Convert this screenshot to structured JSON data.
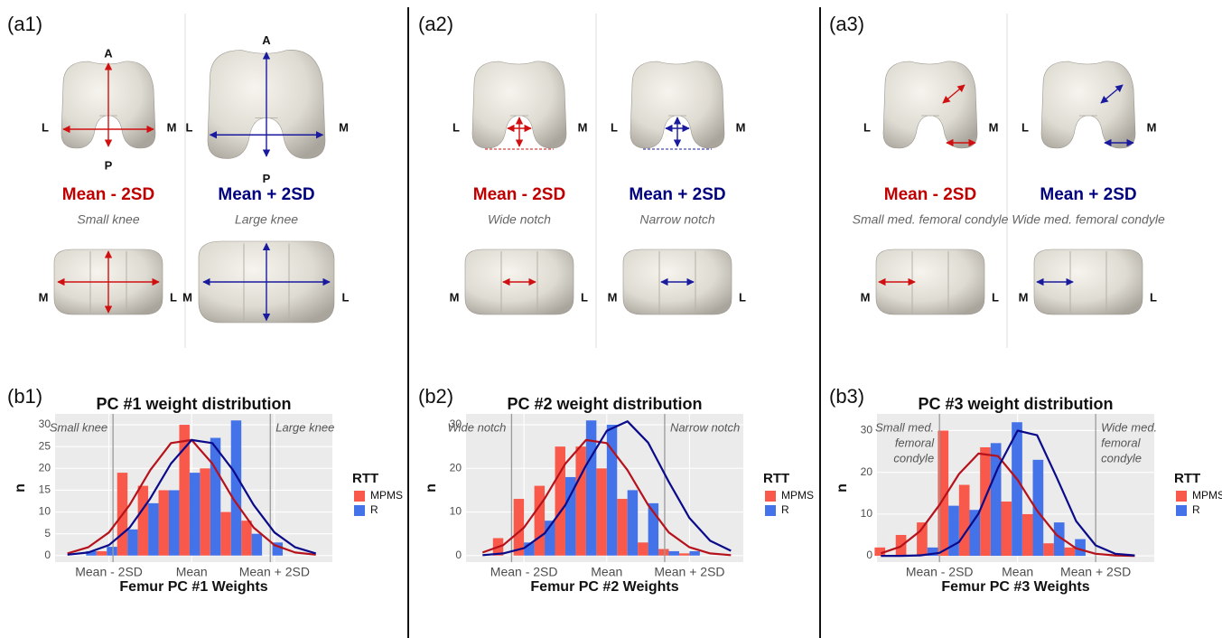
{
  "panels": [
    {
      "label": "(a1)",
      "chart_label": "(b1)",
      "views": [
        {
          "label": "Mean - 2SD",
          "caption": "Small knee",
          "top": {
            "left": "L",
            "right": "M",
            "up": "A",
            "down": "P"
          },
          "bottom": {
            "left": "M",
            "right": "L"
          }
        },
        {
          "label": "Mean + 2SD",
          "caption": "Large knee",
          "top": {
            "left": "L",
            "right": "M",
            "up": "A",
            "down": "P"
          },
          "bottom": {
            "left": "M",
            "right": "L"
          }
        }
      ]
    },
    {
      "label": "(a2)",
      "chart_label": "(b2)",
      "views": [
        {
          "label": "Mean - 2SD",
          "caption": "Wide notch",
          "top": {
            "left": "L",
            "right": "M"
          },
          "bottom": {
            "left": "M",
            "right": "L"
          }
        },
        {
          "label": "Mean + 2SD",
          "caption": "Narrow notch",
          "top": {
            "left": "L",
            "right": "M"
          },
          "bottom": {
            "left": "M",
            "right": "L"
          }
        }
      ]
    },
    {
      "label": "(a3)",
      "chart_label": "(b3)",
      "views": [
        {
          "label": "Mean - 2SD",
          "caption": "Small med. femoral condyle",
          "top": {
            "left": "L",
            "right": "M"
          },
          "bottom": {
            "left": "M",
            "right": "L"
          }
        },
        {
          "label": "Mean + 2SD",
          "caption": "Wide med. femoral condyle",
          "top": {
            "left": "L",
            "right": "M"
          },
          "bottom": {
            "left": "M",
            "right": "L"
          }
        }
      ]
    }
  ],
  "chart_data": [
    {
      "type": "histogram",
      "title": "PC #1 weight distribution",
      "x_label": "Femur PC #1 Weights",
      "y_label": "n",
      "legend_title": "RTT",
      "bins": [
        -2.8,
        -2.3,
        -1.8,
        -1.3,
        -0.8,
        -0.3,
        0.2,
        0.7,
        1.2,
        1.7,
        2.2
      ],
      "series": [
        {
          "name": "MPMS",
          "color": "#f8594a",
          "values": [
            0,
            1,
            19,
            16,
            15,
            30,
            20,
            10,
            8,
            0
          ]
        },
        {
          "name": "R",
          "color": "#4472e8",
          "values": [
            1,
            2,
            6,
            12,
            15,
            19,
            27,
            31,
            5,
            3
          ]
        }
      ],
      "curves": [
        {
          "color": "#b5121b",
          "x": [
            -3,
            -2.5,
            -2,
            -1.5,
            -1,
            -0.5,
            0,
            0.5,
            1,
            1.5,
            2,
            2.5,
            3
          ],
          "values": [
            0.5,
            1.9,
            5.3,
            11.6,
            19.6,
            25.8,
            26.5,
            21.1,
            13.1,
            6.4,
            2.4,
            0.7,
            0.2
          ]
        },
        {
          "color": "#0a0a8a",
          "x": [
            -3,
            -2.5,
            -2,
            -1.5,
            -1,
            -0.5,
            0,
            0.5,
            1,
            1.5,
            2,
            2.5,
            3
          ],
          "values": [
            0.2,
            0.7,
            2.4,
            6.4,
            13.1,
            21.1,
            26.5,
            25.8,
            19.6,
            11.6,
            5.3,
            1.9,
            0.5
          ]
        }
      ],
      "reference_lines": [
        {
          "value": -1.9,
          "lines": [
            "Small knee"
          ]
        },
        {
          "value": 1.9,
          "lines": [
            "Large knee"
          ]
        }
      ],
      "xlim": [
        -3.3,
        3.4
      ],
      "ylim": [
        -1.5,
        32.5
      ],
      "xticks": [
        {
          "value": -2,
          "label": "Mean - 2SD"
        },
        {
          "value": 0,
          "label": "Mean"
        },
        {
          "value": 2,
          "label": "Mean + 2SD"
        }
      ],
      "yticks": [
        0,
        5,
        10,
        15,
        20,
        25,
        30
      ],
      "grid": true
    },
    {
      "type": "histogram",
      "title": "PC #2 weight distribution",
      "x_label": "Femur PC #2 Weights",
      "y_label": "n",
      "legend_title": "RTT",
      "bins": [
        -2.75,
        -2.25,
        -1.75,
        -1.25,
        -0.75,
        -0.25,
        0.25,
        0.75,
        1.25,
        1.75,
        2.25,
        2.75
      ],
      "series": [
        {
          "name": "MPMS",
          "color": "#f8594a",
          "values": [
            4,
            13,
            16,
            25,
            25,
            20,
            13,
            3,
            1.5,
            0.5,
            0
          ]
        },
        {
          "name": "R",
          "color": "#4472e8",
          "values": [
            0,
            3,
            8,
            18,
            31,
            30,
            15,
            12,
            1,
            1,
            0
          ]
        }
      ],
      "curves": [
        {
          "color": "#b5121b",
          "x": [
            -3,
            -2.5,
            -2,
            -1.5,
            -1,
            -0.5,
            0,
            0.5,
            1,
            1.5,
            2,
            2.5,
            3
          ],
          "values": [
            0.7,
            2.4,
            6.4,
            13.1,
            21.1,
            26.5,
            25.8,
            19.6,
            11.6,
            5.3,
            1.9,
            0.5,
            0.1
          ]
        },
        {
          "color": "#0a0a8a",
          "x": [
            -3,
            -2.5,
            -2,
            -1.5,
            -1,
            -0.5,
            0,
            0.5,
            1,
            1.5,
            2,
            2.5,
            3
          ],
          "values": [
            0.1,
            0.5,
            1.7,
            5.1,
            11.6,
            20.7,
            28.6,
            30.8,
            25.9,
            16.9,
            8.6,
            3.4,
            1.1
          ]
        }
      ],
      "reference_lines": [
        {
          "value": -2.3,
          "lines": [
            "Wide notch"
          ]
        },
        {
          "value": 1.4,
          "lines": [
            "Narrow notch"
          ]
        }
      ],
      "xlim": [
        -3.4,
        3.3
      ],
      "ylim": [
        -1.5,
        32.5
      ],
      "xticks": [
        {
          "value": -2,
          "label": "Mean - 2SD"
        },
        {
          "value": 0,
          "label": "Mean"
        },
        {
          "value": 2,
          "label": "Mean + 2SD"
        }
      ],
      "yticks": [
        0,
        10,
        20,
        30
      ],
      "grid": true
    },
    {
      "type": "histogram",
      "title": "PC #3 weight distribution",
      "x_label": "Femur PC #3 Weights",
      "y_label": "n",
      "legend_title": "RTT",
      "bins": [
        -3.66,
        -3.12,
        -2.58,
        -2.04,
        -1.5,
        -0.96,
        -0.42,
        0.12,
        0.66,
        1.2,
        1.74
      ],
      "series": [
        {
          "name": "MPMS",
          "color": "#f8594a",
          "values": [
            2,
            5,
            8,
            30,
            17,
            26,
            13,
            10,
            3,
            2
          ]
        },
        {
          "name": "R",
          "color": "#4472e8",
          "values": [
            0,
            0,
            2,
            12,
            11,
            27,
            32,
            23,
            8,
            4
          ]
        }
      ],
      "curves": [
        {
          "color": "#b5121b",
          "x": [
            -3.5,
            -3,
            -2.5,
            -2,
            -1.5,
            -1,
            -0.5,
            0,
            0.5,
            1,
            1.5,
            2,
            2.5,
            3
          ],
          "values": [
            0.6,
            2.2,
            5.9,
            12.2,
            19.6,
            24.5,
            23.9,
            18.2,
            10.8,
            5,
            1.8,
            0.5,
            0.1,
            0
          ]
        },
        {
          "color": "#0a0a8a",
          "x": [
            -3.5,
            -3,
            -2.5,
            -2,
            -1.5,
            -1,
            -0.5,
            0,
            0.5,
            1,
            1.5,
            2,
            2.5,
            3
          ],
          "values": [
            0,
            0,
            0.1,
            0.7,
            3.3,
            10.1,
            21.1,
            30,
            28.9,
            18.8,
            8.3,
            2.5,
            0.5,
            0.1
          ]
        }
      ],
      "reference_lines": [
        {
          "value": -2,
          "lines": [
            "Small med.",
            "femoral",
            "condyle"
          ]
        },
        {
          "value": 2,
          "lines": [
            "Wide med.",
            "femoral",
            "condyle"
          ]
        }
      ],
      "xlim": [
        -3.6,
        3.5
      ],
      "ylim": [
        -1.5,
        34
      ],
      "xticks": [
        {
          "value": -2,
          "label": "Mean - 2SD"
        },
        {
          "value": 0,
          "label": "Mean"
        },
        {
          "value": 2,
          "label": "Mean + 2SD"
        }
      ],
      "yticks": [
        0,
        10,
        20,
        30
      ],
      "grid": true
    }
  ]
}
